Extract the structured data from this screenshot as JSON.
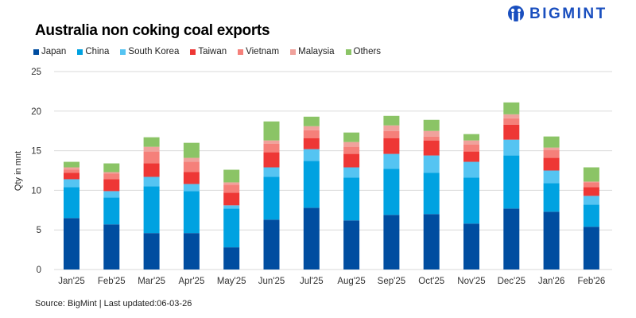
{
  "logo": {
    "text": "BIGMINT"
  },
  "source": "Source: BigMint | Last updated:06-03-26",
  "colors": {
    "Japan": "#004da0",
    "China": "#00a2e1",
    "South Korea": "#55c4f2",
    "Taiwan": "#ee3735",
    "Vietnam": "#f5807a",
    "Malaysia": "#f0a29c",
    "Others": "#8bc466"
  },
  "chart_data": {
    "type": "bar",
    "stacked": true,
    "title": "Australia non coking coal exports",
    "xlabel": "",
    "ylabel": "Qty in mnt",
    "ylim": [
      0,
      25
    ],
    "yticks": [
      0,
      5,
      10,
      15,
      20,
      25
    ],
    "grid": true,
    "legend": "top-left",
    "categories": [
      "Jan'25",
      "Feb'25",
      "Mar'25",
      "Apr'25",
      "May'25",
      "Jun'25",
      "Jul'25",
      "Aug'25",
      "Sep'25",
      "Oct'25",
      "Nov'25",
      "Dec'25",
      "Jan'26",
      "Feb'26"
    ],
    "series": [
      {
        "name": "Japan",
        "values": [
          6.5,
          5.7,
          4.6,
          4.6,
          2.8,
          6.3,
          7.8,
          6.2,
          6.9,
          7.0,
          5.8,
          7.7,
          7.3,
          5.4
        ]
      },
      {
        "name": "China",
        "values": [
          3.9,
          3.4,
          5.9,
          5.3,
          4.9,
          5.4,
          5.9,
          5.4,
          5.8,
          5.2,
          5.8,
          6.7,
          3.6,
          2.8
        ]
      },
      {
        "name": "South Korea",
        "values": [
          1.0,
          0.8,
          1.2,
          0.9,
          0.4,
          1.2,
          1.5,
          1.3,
          1.9,
          2.2,
          2.0,
          2.0,
          1.6,
          1.1
        ]
      },
      {
        "name": "Taiwan",
        "values": [
          0.8,
          1.5,
          1.7,
          1.5,
          1.6,
          1.9,
          1.4,
          1.7,
          2.0,
          1.9,
          1.3,
          1.9,
          1.6,
          1.1
        ]
      },
      {
        "name": "Vietnam",
        "values": [
          0.4,
          0.7,
          1.5,
          1.3,
          1.0,
          1.1,
          1.0,
          0.9,
          0.9,
          0.5,
          0.9,
          0.8,
          1.0,
          0.6
        ]
      },
      {
        "name": "Malaysia",
        "values": [
          0.3,
          0.2,
          0.6,
          0.5,
          0.3,
          0.4,
          0.5,
          0.6,
          0.7,
          0.7,
          0.5,
          0.5,
          0.3,
          0.1
        ]
      },
      {
        "name": "Others",
        "values": [
          0.7,
          1.1,
          1.2,
          1.9,
          1.6,
          2.4,
          1.2,
          1.2,
          1.2,
          1.4,
          0.8,
          1.5,
          1.4,
          1.8
        ]
      }
    ]
  }
}
